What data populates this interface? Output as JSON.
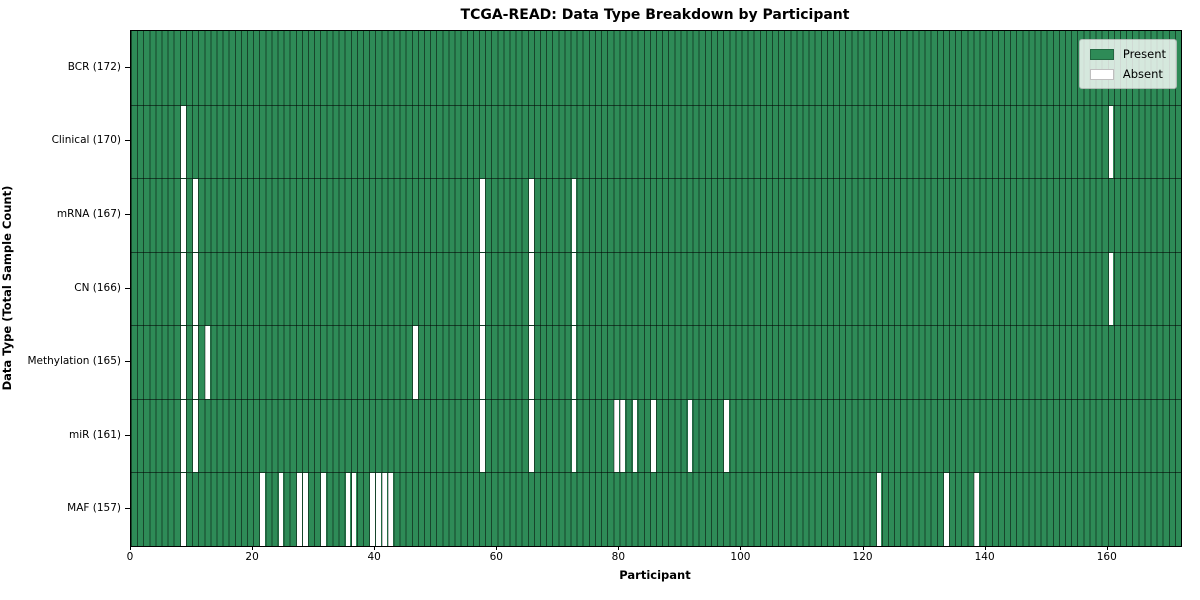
{
  "title": "TCGA-READ: Data Type Breakdown by Participant",
  "x_axis": {
    "label": "Participant",
    "ticks": [
      0,
      20,
      40,
      60,
      80,
      100,
      120,
      140,
      160
    ]
  },
  "y_axis": {
    "label": "Data Type (Total Sample Count)"
  },
  "legend": [
    {
      "label": "Present",
      "color": "#2e8b57"
    },
    {
      "label": "Absent",
      "color": "#ffffff"
    }
  ],
  "colors": {
    "present": "#2e8b57",
    "absent": "#ffffff",
    "grid": "rgba(0,0,0,0.5)",
    "background": "#ffffff"
  },
  "chart_data": {
    "type": "heatmap",
    "xlabel": "Participant",
    "ylabel": "Data Type (Total Sample Count)",
    "n_participants": 172,
    "xlim": [
      0,
      172
    ],
    "legend_position": "upper right",
    "rows": [
      {
        "label": "BCR (172)",
        "data_type": "BCR",
        "total": 172,
        "absent": []
      },
      {
        "label": "Clinical (170)",
        "data_type": "Clinical",
        "total": 170,
        "absent": [
          8,
          160
        ]
      },
      {
        "label": "mRNA (167)",
        "data_type": "mRNA",
        "total": 167,
        "absent": [
          8,
          10,
          57,
          65,
          72
        ]
      },
      {
        "label": "CN (166)",
        "data_type": "CN",
        "total": 166,
        "absent": [
          8,
          10,
          57,
          65,
          72,
          160
        ]
      },
      {
        "label": "Methylation (165)",
        "data_type": "Methylation",
        "total": 165,
        "absent": [
          8,
          10,
          12,
          46,
          57,
          65,
          72
        ]
      },
      {
        "label": "miR (161)",
        "data_type": "miR",
        "total": 161,
        "absent": [
          8,
          10,
          57,
          65,
          72,
          79,
          80,
          82,
          85,
          91,
          97
        ]
      },
      {
        "label": "MAF (157)",
        "data_type": "MAF",
        "total": 157,
        "absent": [
          8,
          21,
          24,
          27,
          28,
          31,
          35,
          36,
          39,
          40,
          41,
          42,
          122,
          133,
          138
        ]
      }
    ]
  }
}
